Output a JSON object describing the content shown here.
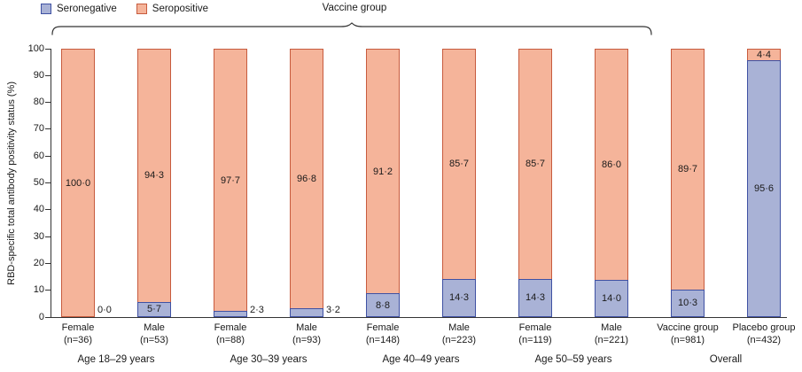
{
  "chart_data": {
    "type": "bar",
    "subtype": "stacked-percentage",
    "ylabel": "RBD-specific total antibody positivity status (%)",
    "ylim": [
      0,
      100
    ],
    "yticks": [
      0,
      10,
      20,
      30,
      40,
      50,
      60,
      70,
      80,
      90,
      100
    ],
    "grid": false,
    "legend_position": "top-left",
    "bracket_label": "Vaccine group",
    "legend": [
      {
        "label": "Seronegative",
        "fill": "#a9b2d6",
        "border": "#3f51a3"
      },
      {
        "label": "Seropositive",
        "fill": "#f5b49a",
        "border": "#c75b3e"
      }
    ],
    "colors": {
      "seronegative_fill": "#a9b2d6",
      "seronegative_border": "#3f51a3",
      "seropositive_fill": "#f5b49a",
      "seropositive_border": "#c75b3e",
      "axis": "#333333",
      "text": "#1a1a1a"
    },
    "groups": [
      {
        "label": "Age 18–29 years",
        "bars": [
          {
            "tick_line1": "Female",
            "tick_line2": "(n=36)",
            "seropositive": 100.0,
            "seronegative": 0.0,
            "seropositive_label": "100·0",
            "seronegative_label": "0·0",
            "seronegative_label_outside": true
          },
          {
            "tick_line1": "Male",
            "tick_line2": "(n=53)",
            "seropositive": 94.3,
            "seronegative": 5.7,
            "seropositive_label": "94·3",
            "seronegative_label": "5·7",
            "seronegative_label_outside": false
          }
        ]
      },
      {
        "label": "Age 30–39 years",
        "bars": [
          {
            "tick_line1": "Female",
            "tick_line2": "(n=88)",
            "seropositive": 97.7,
            "seronegative": 2.3,
            "seropositive_label": "97·7",
            "seronegative_label": "2·3",
            "seronegative_label_outside": true
          },
          {
            "tick_line1": "Male",
            "tick_line2": "(n=93)",
            "seropositive": 96.8,
            "seronegative": 3.2,
            "seropositive_label": "96·8",
            "seronegative_label": "3·2",
            "seronegative_label_outside": true
          }
        ]
      },
      {
        "label": "Age 40–49 years",
        "bars": [
          {
            "tick_line1": "Female",
            "tick_line2": "(n=148)",
            "seropositive": 91.2,
            "seronegative": 8.8,
            "seropositive_label": "91·2",
            "seronegative_label": "8·8",
            "seronegative_label_outside": false
          },
          {
            "tick_line1": "Male",
            "tick_line2": "(n=223)",
            "seropositive": 85.7,
            "seronegative": 14.3,
            "seropositive_label": "85·7",
            "seronegative_label": "14·3",
            "seronegative_label_outside": false
          }
        ]
      },
      {
        "label": "Age 50–59 years",
        "bars": [
          {
            "tick_line1": "Female",
            "tick_line2": "(n=119)",
            "seropositive": 85.7,
            "seronegative": 14.3,
            "seropositive_label": "85·7",
            "seronegative_label": "14·3",
            "seronegative_label_outside": false
          },
          {
            "tick_line1": "Male",
            "tick_line2": "(n=221)",
            "seropositive": 86.0,
            "seronegative": 14.0,
            "seropositive_label": "86·0",
            "seronegative_label": "14·0",
            "seronegative_label_outside": false
          }
        ]
      },
      {
        "label": "Overall",
        "bars": [
          {
            "tick_line1": "Vaccine group",
            "tick_line2": "(n=981)",
            "seropositive": 89.7,
            "seronegative": 10.3,
            "seropositive_label": "89·7",
            "seronegative_label": "10·3",
            "seronegative_label_outside": false
          },
          {
            "tick_line1": "Placebo group",
            "tick_line2": "(n=432)",
            "seropositive": 4.4,
            "seronegative": 95.6,
            "seropositive_label": "4·4",
            "seronegative_label": "95·6",
            "seronegative_label_outside": false
          }
        ]
      }
    ]
  }
}
